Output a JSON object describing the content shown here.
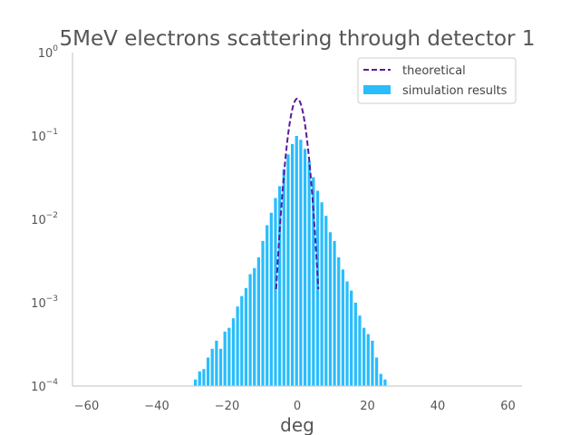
{
  "chart_data": {
    "type": "bar",
    "title": "5MeV electrons scattering through detector 1",
    "xlabel": "deg",
    "ylabel": "",
    "xlim": [
      -64,
      64
    ],
    "ylim": [
      0.0001,
      1
    ],
    "y_scale": "log",
    "grid": false,
    "legend_position": "top-right",
    "x_ticks": [
      -60,
      -40,
      -20,
      0,
      20,
      40,
      60
    ],
    "x_tick_labels": [
      "−60",
      "−40",
      "−20",
      "0",
      "20",
      "40",
      "60"
    ],
    "y_ticks": [
      {
        "base": "10",
        "exp": "0",
        "value": 1
      },
      {
        "base": "10",
        "exp": "−1",
        "value": 0.1
      },
      {
        "base": "10",
        "exp": "−2",
        "value": 0.01
      },
      {
        "base": "10",
        "exp": "−3",
        "value": 0.001
      },
      {
        "base": "10",
        "exp": "−4",
        "value": 0.0001
      }
    ],
    "series": [
      {
        "name": "simulation results",
        "kind": "bar",
        "color": "#29bdfd",
        "bin_width": 1.2,
        "x": [
          -29.0,
          -27.8,
          -26.6,
          -25.4,
          -24.2,
          -23.0,
          -21.8,
          -20.6,
          -19.4,
          -18.2,
          -17.0,
          -15.8,
          -14.6,
          -13.4,
          -12.2,
          -11.0,
          -9.8,
          -8.6,
          -7.4,
          -6.2,
          -5.0,
          -3.8,
          -2.6,
          -1.4,
          -0.2,
          1.0,
          2.2,
          3.4,
          4.6,
          5.8,
          7.0,
          8.2,
          9.4,
          10.6,
          11.8,
          13.0,
          14.2,
          15.4,
          16.6,
          17.8,
          19.0,
          20.2,
          21.4,
          22.6,
          23.8,
          25.0
        ],
        "values": [
          0.00012,
          0.00015,
          0.00016,
          0.00022,
          0.00028,
          0.00035,
          0.00028,
          0.00045,
          0.0005,
          0.00065,
          0.0009,
          0.0012,
          0.0015,
          0.0022,
          0.0026,
          0.0035,
          0.0055,
          0.0085,
          0.012,
          0.018,
          0.025,
          0.04,
          0.06,
          0.08,
          0.1,
          0.09,
          0.07,
          0.05,
          0.032,
          0.022,
          0.016,
          0.011,
          0.007,
          0.0055,
          0.0035,
          0.0025,
          0.0018,
          0.0014,
          0.001,
          0.0007,
          0.0005,
          0.00042,
          0.00035,
          0.00022,
          0.00014,
          0.00012
        ]
      },
      {
        "name": "theoretical",
        "kind": "line",
        "style": "dashed",
        "color": "#5a1a9e",
        "peak": 0.28,
        "sigma_deg": 1.85,
        "x_range": [
          -6.0,
          6.0
        ]
      }
    ]
  }
}
